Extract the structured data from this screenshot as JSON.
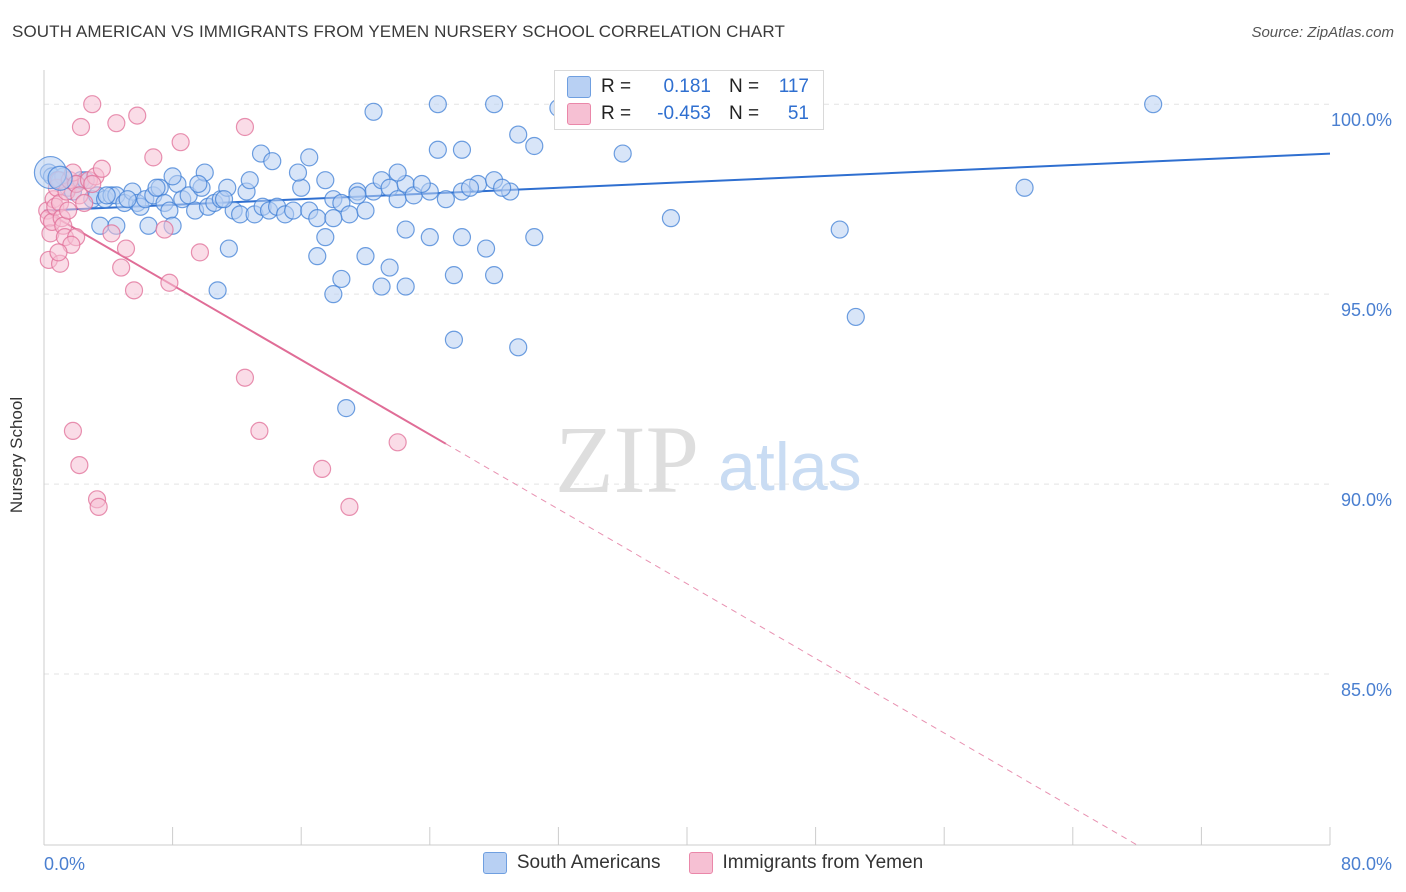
{
  "header": {
    "title": "SOUTH AMERICAN VS IMMIGRANTS FROM YEMEN NURSERY SCHOOL CORRELATION CHART",
    "source": "Source: ZipAtlas.com"
  },
  "watermark": {
    "zip": "ZIP",
    "atlas": "atlas"
  },
  "legend": {
    "rows": [
      {
        "r_label": "R =",
        "r_value": "0.181",
        "n_label": "N =",
        "n_value": "117",
        "color": "#6f9fe0",
        "fill": "#b8d0f3"
      },
      {
        "r_label": "R =",
        "r_value": "-0.453",
        "n_label": "N =",
        "n_value": "51",
        "color": "#ea87a9",
        "fill": "#f6c0d3"
      }
    ]
  },
  "bottom_legend": [
    {
      "label": "South Americans",
      "color": "#6f9fe0",
      "fill": "#b8d0f3"
    },
    {
      "label": "Immigrants from Yemen",
      "color": "#ea87a9",
      "fill": "#f6c0d3"
    }
  ],
  "chart_data": {
    "type": "scatter",
    "title": "SOUTH AMERICAN VS IMMIGRANTS FROM YEMEN NURSERY SCHOOL CORRELATION CHART",
    "xlabel": "",
    "ylabel": "Nursery School",
    "xlim": [
      0,
      80
    ],
    "ylim": [
      80.5,
      100.9
    ],
    "x_tick_labels": [
      "0.0%",
      "80.0%"
    ],
    "y_ticks": [
      85,
      90,
      95,
      100
    ],
    "y_tick_labels": [
      "85.0%",
      "90.0%",
      "95.0%",
      "100.0%"
    ],
    "grid": true,
    "legend_position": "top-center",
    "series": [
      {
        "name": "South Americans",
        "color": "#3f7fd6",
        "fill": "#b8d0f3",
        "r": 0.181,
        "n": 117,
        "trend": {
          "x": [
            0,
            80
          ],
          "y": [
            97.2,
            98.7
          ],
          "dashed_from": null
        },
        "points": [
          [
            0.3,
            98.2
          ],
          [
            0.5,
            98.1
          ],
          [
            0.8,
            98.0
          ],
          [
            1.0,
            98.0
          ],
          [
            1.2,
            98.1
          ],
          [
            1.5,
            97.8
          ],
          [
            1.8,
            97.7
          ],
          [
            2.0,
            97.9
          ],
          [
            2.3,
            98.0
          ],
          [
            2.6,
            98.0
          ],
          [
            3.0,
            97.5
          ],
          [
            3.3,
            97.6
          ],
          [
            3.5,
            96.8
          ],
          [
            3.8,
            97.5
          ],
          [
            4.2,
            97.6
          ],
          [
            4.5,
            97.6
          ],
          [
            5.0,
            97.4
          ],
          [
            5.5,
            97.7
          ],
          [
            5.8,
            97.4
          ],
          [
            6.0,
            97.3
          ],
          [
            6.3,
            97.5
          ],
          [
            6.8,
            97.6
          ],
          [
            7.2,
            97.8
          ],
          [
            7.5,
            97.4
          ],
          [
            7.8,
            97.2
          ],
          [
            8.3,
            97.9
          ],
          [
            8.6,
            97.5
          ],
          [
            9.0,
            97.6
          ],
          [
            9.4,
            97.2
          ],
          [
            9.8,
            97.8
          ],
          [
            10.2,
            97.3
          ],
          [
            10.6,
            97.4
          ],
          [
            11.0,
            97.5
          ],
          [
            11.4,
            97.8
          ],
          [
            11.8,
            97.2
          ],
          [
            12.2,
            97.1
          ],
          [
            12.6,
            97.7
          ],
          [
            13.1,
            97.1
          ],
          [
            13.6,
            97.3
          ],
          [
            14.0,
            97.2
          ],
          [
            14.5,
            97.3
          ],
          [
            15.0,
            97.1
          ],
          [
            15.5,
            97.2
          ],
          [
            16.0,
            97.8
          ],
          [
            16.5,
            97.2
          ],
          [
            17.0,
            97.0
          ],
          [
            17.5,
            98.0
          ],
          [
            18.0,
            97.5
          ],
          [
            18.5,
            97.4
          ],
          [
            19.0,
            97.1
          ],
          [
            19.5,
            97.7
          ],
          [
            20.0,
            97.2
          ],
          [
            20.5,
            97.7
          ],
          [
            21.0,
            98.0
          ],
          [
            21.5,
            97.8
          ],
          [
            22.0,
            97.5
          ],
          [
            22.5,
            97.9
          ],
          [
            23.0,
            97.6
          ],
          [
            24.0,
            97.7
          ],
          [
            25.0,
            97.5
          ],
          [
            26.0,
            97.7
          ],
          [
            27.0,
            97.9
          ],
          [
            28.0,
            98.0
          ],
          [
            29.0,
            97.7
          ],
          [
            8.0,
            98.1
          ],
          [
            10.0,
            98.2
          ],
          [
            13.5,
            98.7
          ],
          [
            14.2,
            98.5
          ],
          [
            16.5,
            98.6
          ],
          [
            20.5,
            99.8
          ],
          [
            24.5,
            98.8
          ],
          [
            26.0,
            98.8
          ],
          [
            28.0,
            100.0
          ],
          [
            29.5,
            99.2
          ],
          [
            30.5,
            98.9
          ],
          [
            32.0,
            99.9
          ],
          [
            36.0,
            98.7
          ],
          [
            24.5,
            100.0
          ],
          [
            22.0,
            98.2
          ],
          [
            18.0,
            97.0
          ],
          [
            19.5,
            97.6
          ],
          [
            22.5,
            96.7
          ],
          [
            17.5,
            96.5
          ],
          [
            17.0,
            96.0
          ],
          [
            18.5,
            95.4
          ],
          [
            18.0,
            95.0
          ],
          [
            20.0,
            96.0
          ],
          [
            21.5,
            95.7
          ],
          [
            22.5,
            95.2
          ],
          [
            24.0,
            96.5
          ],
          [
            25.5,
            95.5
          ],
          [
            26.0,
            96.5
          ],
          [
            27.5,
            96.2
          ],
          [
            28.0,
            95.5
          ],
          [
            30.5,
            96.5
          ],
          [
            21.0,
            95.2
          ],
          [
            11.5,
            96.2
          ],
          [
            10.8,
            95.1
          ],
          [
            8.0,
            96.8
          ],
          [
            6.5,
            96.8
          ],
          [
            4.5,
            96.8
          ],
          [
            25.5,
            93.8
          ],
          [
            29.5,
            93.6
          ],
          [
            18.8,
            92.0
          ],
          [
            39.0,
            97.0
          ],
          [
            49.5,
            96.7
          ],
          [
            50.5,
            94.4
          ],
          [
            61.0,
            97.8
          ],
          [
            69.0,
            100.0
          ],
          [
            28.5,
            97.8
          ],
          [
            26.5,
            97.8
          ],
          [
            23.5,
            97.9
          ],
          [
            15.8,
            98.2
          ],
          [
            12.8,
            98.0
          ],
          [
            11.2,
            97.5
          ],
          [
            9.6,
            97.9
          ],
          [
            7.0,
            97.8
          ],
          [
            5.2,
            97.5
          ],
          [
            3.9,
            97.6
          ]
        ]
      },
      {
        "name": "Immigrants from Yemen",
        "color": "#e06d97",
        "fill": "#f6c0d3",
        "r": -0.453,
        "n": 51,
        "trend": {
          "x": [
            0,
            68
          ],
          "y": [
            97.2,
            80.5
          ],
          "solid_until_x": 25
        },
        "points": [
          [
            0.2,
            97.2
          ],
          [
            0.3,
            97.0
          ],
          [
            0.4,
            96.6
          ],
          [
            0.5,
            96.9
          ],
          [
            0.6,
            97.5
          ],
          [
            0.7,
            97.3
          ],
          [
            0.8,
            97.8
          ],
          [
            0.9,
            98.0
          ],
          [
            1.0,
            97.4
          ],
          [
            1.1,
            97.0
          ],
          [
            1.2,
            96.8
          ],
          [
            1.3,
            96.5
          ],
          [
            1.4,
            97.7
          ],
          [
            1.5,
            97.2
          ],
          [
            1.6,
            98.0
          ],
          [
            1.8,
            98.2
          ],
          [
            2.0,
            97.9
          ],
          [
            2.2,
            97.6
          ],
          [
            2.5,
            97.4
          ],
          [
            2.8,
            98.0
          ],
          [
            3.2,
            98.1
          ],
          [
            3.0,
            97.9
          ],
          [
            0.3,
            95.9
          ],
          [
            1.0,
            95.8
          ],
          [
            2.0,
            96.5
          ],
          [
            4.2,
            96.6
          ],
          [
            2.3,
            99.4
          ],
          [
            4.5,
            99.5
          ],
          [
            5.8,
            99.7
          ],
          [
            3.0,
            100.0
          ],
          [
            6.8,
            98.6
          ],
          [
            8.5,
            99.0
          ],
          [
            12.5,
            99.4
          ],
          [
            4.8,
            95.7
          ],
          [
            5.6,
            95.1
          ],
          [
            7.8,
            95.3
          ],
          [
            9.7,
            96.1
          ],
          [
            12.5,
            92.8
          ],
          [
            13.4,
            91.4
          ],
          [
            1.8,
            91.4
          ],
          [
            2.2,
            90.5
          ],
          [
            3.3,
            89.6
          ],
          [
            3.4,
            89.4
          ],
          [
            17.3,
            90.4
          ],
          [
            19.0,
            89.4
          ],
          [
            22.0,
            91.1
          ],
          [
            7.5,
            96.7
          ],
          [
            5.1,
            96.2
          ],
          [
            1.7,
            96.3
          ],
          [
            0.9,
            96.1
          ],
          [
            3.6,
            98.3
          ]
        ]
      }
    ]
  }
}
